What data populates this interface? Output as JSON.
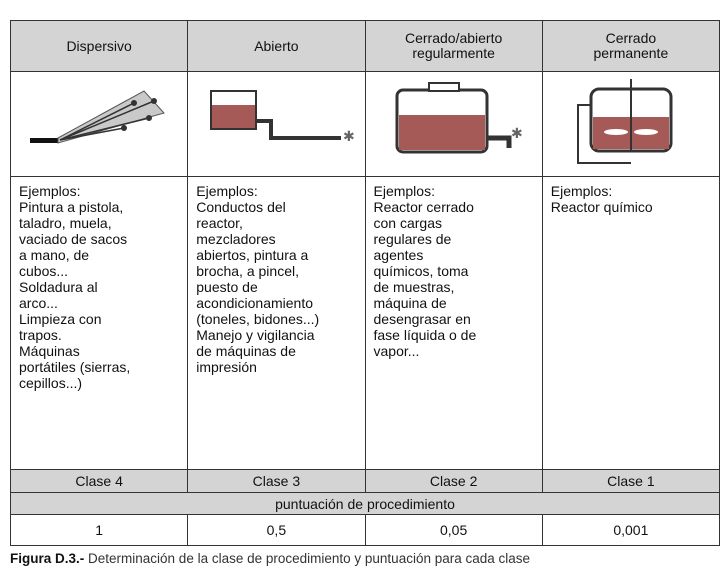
{
  "table": {
    "headers": [
      [
        "Dispersivo"
      ],
      [
        "Abierto"
      ],
      [
        "Cerrado/abierto",
        "regularmente"
      ],
      [
        "Cerrado",
        "permanente"
      ]
    ],
    "examples": [
      [
        "Ejemplos:",
        "Pintura a pistola,",
        "taladro, muela,",
        "vaciado de sacos",
        "a mano, de",
        "cubos...",
        "Soldadura al",
        "arco...",
        "Limpieza con",
        "trapos.",
        "Máquinas",
        "portátiles (sierras,",
        "cepillos...)"
      ],
      [
        "Ejemplos:",
        "Conductos del",
        "reactor,",
        "mezcladores",
        "abiertos, pintura a",
        "brocha, a pincel,",
        "puesto de",
        "acondicionamiento",
        "(toneles, bidones...)",
        "Manejo y vigilancia",
        "de máquinas de",
        "impresión"
      ],
      [
        "Ejemplos:",
        "Reactor cerrado",
        "con cargas",
        "regulares de",
        "agentes",
        "químicos, toma",
        "de muestras,",
        "máquina de",
        "desengrasar en",
        "fase líquida o de",
        "vapor..."
      ],
      [
        "Ejemplos:",
        "Reactor químico"
      ]
    ],
    "classes": [
      "Clase 4",
      "Clase 3",
      "Clase 2",
      "Clase 1"
    ],
    "score_label": "puntuación de procedimiento",
    "scores": [
      "1",
      "0,5",
      "0,05",
      "0,001"
    ]
  },
  "caption": {
    "label": "Figura D.3.-",
    "text": " Determinación de la clase de procedimiento y puntuación para cada clase"
  }
}
